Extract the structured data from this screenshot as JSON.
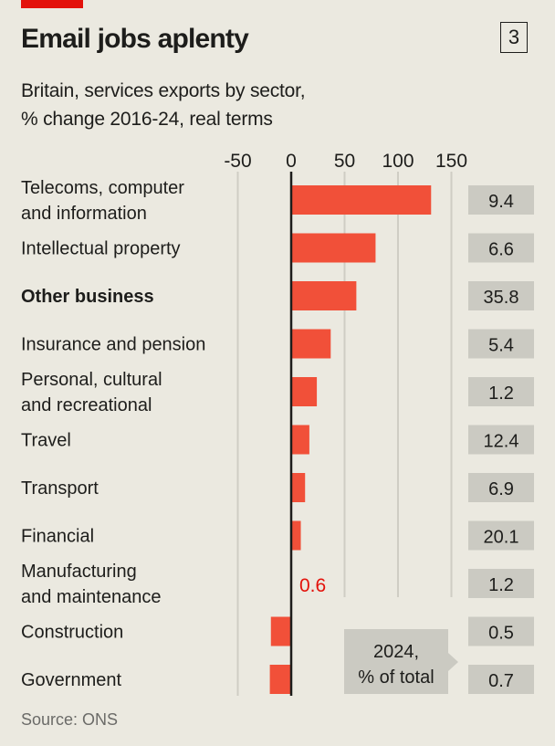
{
  "header": {
    "title": "Email jobs aplenty",
    "chart_number": "3",
    "subtitle_lines": [
      "Britain, services exports by sector,",
      "% change 2016-24, real terms"
    ]
  },
  "colors": {
    "accent_red": "#e3120b",
    "bar": "#f15039",
    "value_box": "#cbcac2",
    "background": "#ebe9e0",
    "highlight_label": "#e3120b"
  },
  "source": "Source: ONS",
  "chart_data": {
    "type": "bar",
    "orientation": "horizontal",
    "title": "Email jobs aplenty",
    "subtitle": "Britain, services exports by sector, % change 2016-24, real terms",
    "xlabel": "% change 2016-24, real terms",
    "ylabel": "",
    "xlim": [
      -50,
      150
    ],
    "xticks": [
      -50,
      0,
      50,
      100,
      150
    ],
    "xtick_labels": [
      "-50",
      "0",
      "50",
      "100",
      "150"
    ],
    "grid": true,
    "categories": [
      {
        "label": [
          "Telecoms, computer",
          "and information"
        ],
        "bold": false
      },
      {
        "label": [
          "Intellectual property"
        ],
        "bold": false
      },
      {
        "label": [
          "Other business"
        ],
        "bold": true
      },
      {
        "label": [
          "Insurance and pension"
        ],
        "bold": false
      },
      {
        "label": [
          "Personal, cultural",
          "and recreational"
        ],
        "bold": false
      },
      {
        "label": [
          "Travel"
        ],
        "bold": false
      },
      {
        "label": [
          "Transport"
        ],
        "bold": false
      },
      {
        "label": [
          "Financial"
        ],
        "bold": false
      },
      {
        "label": [
          "Manufacturing",
          "and maintenance"
        ],
        "bold": false
      },
      {
        "label": [
          "Construction"
        ],
        "bold": false
      },
      {
        "label": [
          "Government"
        ],
        "bold": false
      }
    ],
    "series": [
      {
        "name": "% change 2016-24",
        "values": [
          131,
          79,
          61,
          37,
          24,
          17,
          13,
          9,
          0.6,
          -19,
          -20
        ]
      },
      {
        "name": "2024, % of total",
        "values": [
          9.4,
          6.6,
          35.8,
          5.4,
          1.2,
          12.4,
          6.9,
          20.1,
          1.2,
          0.5,
          0.7
        ]
      }
    ],
    "annotations": [
      {
        "text": "0.6",
        "target": "Manufacturing and maintenance",
        "color": "#e3120b"
      },
      {
        "text": [
          "2024,",
          "% of total"
        ],
        "target": "value column"
      }
    ]
  }
}
